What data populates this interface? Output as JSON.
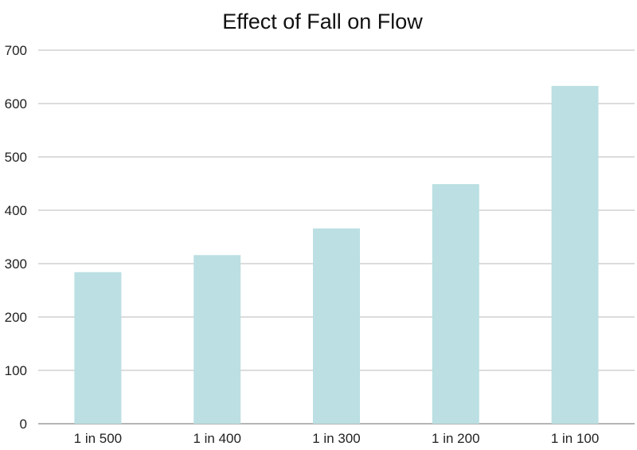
{
  "chart_data": {
    "type": "bar",
    "title": "Effect of Fall on Flow",
    "xlabel": "",
    "ylabel": "",
    "categories": [
      "1 in 500",
      "1 in 400",
      "1 in 300",
      "1 in 200",
      "1 in 100"
    ],
    "values": [
      284,
      316,
      366,
      449,
      633
    ],
    "ylim": [
      0,
      700
    ],
    "yticks": [
      0,
      100,
      200,
      300,
      400,
      500,
      600,
      700
    ],
    "grid": true,
    "legend": "none",
    "bar_color": "#bbdfe2"
  }
}
